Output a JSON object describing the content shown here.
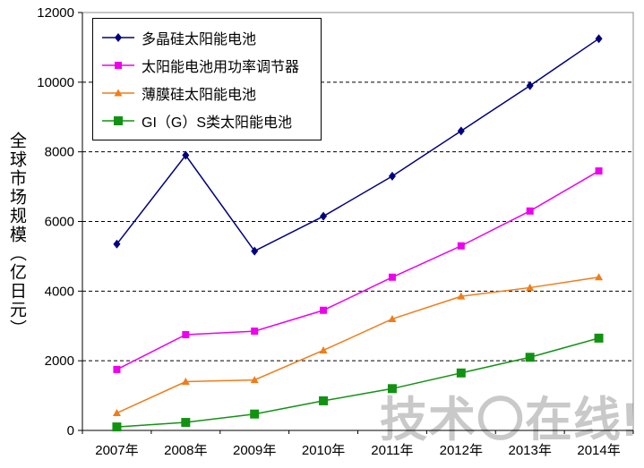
{
  "watermark": {
    "text": "技术〇在线!"
  },
  "chart_data": {
    "type": "line",
    "title": "",
    "xlabel": "",
    "ylabel": "全球市场规模（亿日元）",
    "categories": [
      "2007年",
      "2008年",
      "2009年",
      "2010年",
      "2011年",
      "2012年",
      "2013年",
      "2014年"
    ],
    "ylim": [
      0,
      12000
    ],
    "yticks": [
      0,
      2000,
      4000,
      6000,
      8000,
      10000,
      12000
    ],
    "grid": "horizontal-dashed",
    "legend_position": "top-left-inside",
    "frame_color": "#8c8c8c",
    "axis_color": "#000000",
    "grid_color": "#000000",
    "series": [
      {
        "name": "多晶硅太阳能电池",
        "color": "#00007f",
        "marker": "diamond",
        "marker_size": 8,
        "values": [
          5350,
          7900,
          5150,
          6150,
          7300,
          8600,
          9900,
          11250
        ]
      },
      {
        "name": "太阳能电池用功率调节器",
        "color": "#ee00ee",
        "marker": "square",
        "marker_size": 8,
        "values": [
          1750,
          2750,
          2850,
          3450,
          4400,
          5300,
          6300,
          7450
        ]
      },
      {
        "name": "薄膜硅太阳能电池",
        "color": "#ef7d1a",
        "marker": "triangle",
        "marker_size": 9,
        "values": [
          500,
          1400,
          1450,
          2300,
          3200,
          3850,
          4100,
          4400
        ]
      },
      {
        "name": "GI（G）S类太阳能电池",
        "color": "#129212",
        "marker": "square",
        "marker_size": 10,
        "values": [
          100,
          230,
          470,
          850,
          1200,
          1650,
          2100,
          2650
        ]
      }
    ]
  }
}
